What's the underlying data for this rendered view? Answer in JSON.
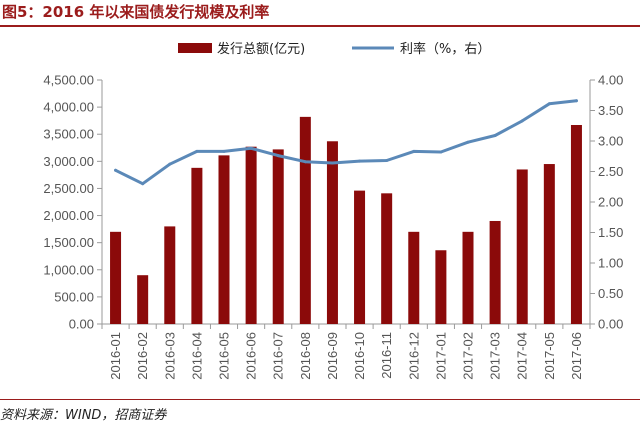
{
  "header": {
    "title": "图5：2016 年以来国债发行规模及利率"
  },
  "footer": {
    "source": "资料来源：WIND，招商证券"
  },
  "colors": {
    "bar": "#8b0a0a",
    "line": "#5b89b8",
    "axis": "#9a9a9a",
    "title": "#9b1c1c"
  },
  "chart_data": {
    "type": "bar+line",
    "categories": [
      "2016-01",
      "2016-02",
      "2016-03",
      "2016-04",
      "2016-05",
      "2016-06",
      "2016-07",
      "2016-08",
      "2016-09",
      "2016-10",
      "2016-11",
      "2016-12",
      "2017-01",
      "2017-02",
      "2017-03",
      "2017-04",
      "2017-05",
      "2017-06"
    ],
    "series": [
      {
        "name": "发行总额(亿元)",
        "type": "bar",
        "axis": "left",
        "values": [
          1700,
          900,
          1800,
          2880,
          3110,
          3270,
          3220,
          3820,
          3370,
          2460,
          2410,
          1700,
          1360,
          1700,
          1900,
          2850,
          2950,
          3670
        ]
      },
      {
        "name": "利率（%，右）",
        "type": "line",
        "axis": "right",
        "values": [
          2.52,
          2.3,
          2.62,
          2.83,
          2.83,
          2.88,
          2.76,
          2.66,
          2.64,
          2.67,
          2.68,
          2.83,
          2.82,
          2.98,
          3.09,
          3.33,
          3.61,
          3.66
        ]
      }
    ],
    "left_axis": {
      "min": 0,
      "max": 4500,
      "step": 500,
      "tick_labels": [
        "0.00",
        "500.00",
        "1,000.00",
        "1,500.00",
        "2,000.00",
        "2,500.00",
        "3,000.00",
        "3,500.00",
        "4,000.00",
        "4,500.00"
      ]
    },
    "right_axis": {
      "min": 0,
      "max": 4.0,
      "step": 0.5,
      "tick_labels": [
        "0.00",
        "0.50",
        "1.00",
        "1.50",
        "2.00",
        "2.50",
        "3.00",
        "3.50",
        "4.00"
      ]
    },
    "legend": {
      "position": "top"
    },
    "grid": false
  }
}
